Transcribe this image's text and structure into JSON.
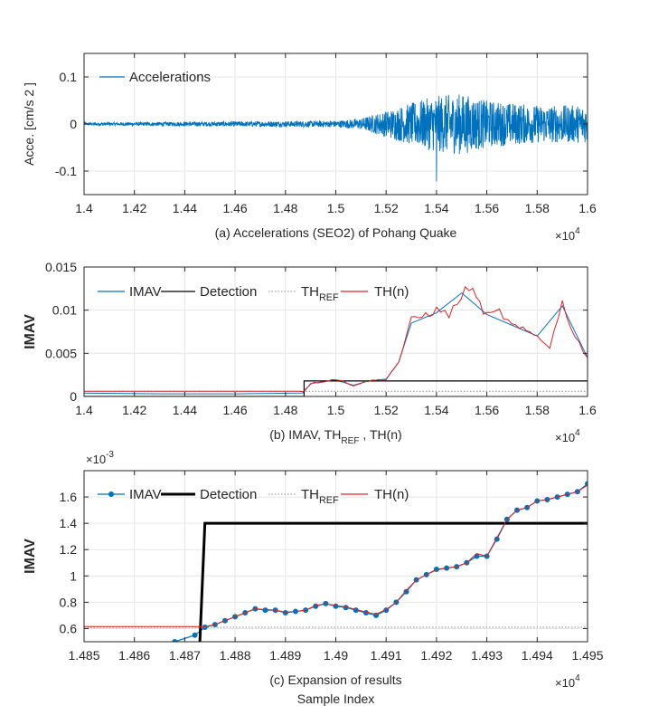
{
  "chart_data": [
    {
      "id": "a",
      "type": "line",
      "xlabel": "(a) Accelerations (SEO2) of  Pohang Quake",
      "ylabel": "Acce. [cm/s 2 ]",
      "x_multiplier_base": "×10",
      "x_multiplier_exp": "4",
      "xlim": [
        1.4,
        1.6
      ],
      "ylim": [
        -0.15,
        0.15
      ],
      "xticks": [
        "1.4",
        "1.42",
        "1.44",
        "1.46",
        "1.48",
        "1.5",
        "1.52",
        "1.54",
        "1.56",
        "1.58",
        "1.6"
      ],
      "yticks": [
        "0.1",
        "0",
        "-0.1"
      ],
      "ytick_values": [
        0.1,
        0,
        -0.1
      ],
      "grid": true,
      "legend_position": "top-left",
      "series": [
        {
          "name": "Accelerations",
          "color": "#0072BD",
          "style": "solid",
          "kind": "seismic",
          "envelope": [
            [
              1.4,
              0.003
            ],
            [
              1.5,
              0.007
            ],
            [
              1.51,
              0.012
            ],
            [
              1.52,
              0.028
            ],
            [
              1.53,
              0.045
            ],
            [
              1.54,
              0.06
            ],
            [
              1.55,
              0.065
            ],
            [
              1.56,
              0.05
            ],
            [
              1.58,
              0.04
            ],
            [
              1.6,
              0.04
            ]
          ],
          "peak": {
            "x": 1.54,
            "y": -0.122
          }
        }
      ]
    },
    {
      "id": "b",
      "type": "line",
      "xlabel_main": "(b) IMAV, TH",
      "xlabel_sub": "REF",
      "xlabel_tail": " , TH(n)",
      "ylabel": "IMAV",
      "x_multiplier_base": "×10",
      "x_multiplier_exp": "4",
      "xlim": [
        1.4,
        1.6
      ],
      "ylim": [
        0,
        0.015
      ],
      "xticks": [
        "1.4",
        "1.42",
        "1.44",
        "1.46",
        "1.48",
        "1.5",
        "1.52",
        "1.54",
        "1.56",
        "1.58",
        "1.6"
      ],
      "yticks": [
        "0.015",
        "0.01",
        "0.005",
        "0"
      ],
      "ytick_values": [
        0.015,
        0.01,
        0.005,
        0
      ],
      "grid": true,
      "legend_position": "top",
      "series": [
        {
          "name": "IMAV",
          "color": "#0072BD",
          "style": "solid",
          "points": [
            [
              1.4,
              0.0004
            ],
            [
              1.43,
              0.0003
            ],
            [
              1.46,
              0.0003
            ],
            [
              1.487,
              0.0004
            ],
            [
              1.49,
              0.0015
            ],
            [
              1.5,
              0.0019
            ],
            [
              1.507,
              0.0013
            ],
            [
              1.513,
              0.0018
            ],
            [
              1.52,
              0.002
            ],
            [
              1.525,
              0.004
            ],
            [
              1.53,
              0.0085
            ],
            [
              1.54,
              0.0097
            ],
            [
              1.55,
              0.012
            ],
            [
              1.56,
              0.0095
            ],
            [
              1.58,
              0.007
            ],
            [
              1.59,
              0.0105
            ],
            [
              1.6,
              0.0045
            ]
          ]
        },
        {
          "name": "Detection",
          "color": "#000000",
          "style": "step",
          "points": [
            [
              1.4,
              0
            ],
            [
              1.4874,
              0
            ],
            [
              1.4874,
              0.0018
            ],
            [
              1.6,
              0.0018
            ]
          ]
        },
        {
          "name_main": "TH",
          "name_sub": "REF",
          "color": "#8c8c8c",
          "style": "dotted",
          "points": [
            [
              1.4,
              0.0006
            ],
            [
              1.6,
              0.0006
            ]
          ]
        },
        {
          "name": "TH(n)",
          "color": "#D62728",
          "style": "solid",
          "points": [
            [
              1.4,
              0.0006
            ],
            [
              1.487,
              0.0006
            ],
            [
              1.49,
              0.0015
            ],
            [
              1.5,
              0.002
            ],
            [
              1.507,
              0.0013
            ],
            [
              1.513,
              0.0018
            ],
            [
              1.52,
              0.002
            ],
            [
              1.525,
              0.004
            ],
            [
              1.53,
              0.0088
            ],
            [
              1.54,
              0.01
            ],
            [
              1.545,
              0.0095
            ],
            [
              1.553,
              0.0128
            ],
            [
              1.56,
              0.0093
            ],
            [
              1.565,
              0.0098
            ],
            [
              1.57,
              0.0082
            ],
            [
              1.58,
              0.007
            ],
            [
              1.585,
              0.0058
            ],
            [
              1.59,
              0.0108
            ],
            [
              1.595,
              0.007
            ],
            [
              1.6,
              0.0045
            ]
          ]
        }
      ]
    },
    {
      "id": "c",
      "type": "line",
      "xlabel": "(c) Expansion of results",
      "xlabel2": "Sample Index",
      "ylabel": "IMAV",
      "x_multiplier_base": "×10",
      "x_multiplier_exp": "4",
      "y_multiplier_base": "×10",
      "y_multiplier_exp": "-3",
      "xlim": [
        1.485,
        1.495
      ],
      "ylim": [
        0.5,
        1.8
      ],
      "xticks": [
        "1.485",
        "1.486",
        "1.487",
        "1.488",
        "1.489",
        "1.49",
        "1.491",
        "1.492",
        "1.493",
        "1.494",
        "1.495"
      ],
      "yticks": [
        "1.6",
        "1.4",
        "1.2",
        "1",
        "0.8",
        "0.6"
      ],
      "ytick_values": [
        1.6,
        1.4,
        1.2,
        1.0,
        0.8,
        0.6
      ],
      "grid": true,
      "legend_position": "top",
      "series": [
        {
          "name": "IMAV",
          "color": "#0072BD",
          "style": "markers",
          "points": [
            [
              1.4868,
              0.5
            ],
            [
              1.4872,
              0.55
            ],
            [
              1.4874,
              0.61
            ],
            [
              1.4876,
              0.63
            ],
            [
              1.4878,
              0.66
            ],
            [
              1.488,
              0.69
            ],
            [
              1.4882,
              0.72
            ],
            [
              1.4884,
              0.75
            ],
            [
              1.4886,
              0.74
            ],
            [
              1.4888,
              0.74
            ],
            [
              1.489,
              0.72
            ],
            [
              1.4892,
              0.73
            ],
            [
              1.4894,
              0.74
            ],
            [
              1.4896,
              0.77
            ],
            [
              1.4898,
              0.79
            ],
            [
              1.49,
              0.77
            ],
            [
              1.4902,
              0.76
            ],
            [
              1.4904,
              0.74
            ],
            [
              1.4906,
              0.72
            ],
            [
              1.4908,
              0.7
            ],
            [
              1.491,
              0.74
            ],
            [
              1.4912,
              0.8
            ],
            [
              1.4914,
              0.88
            ],
            [
              1.4916,
              0.97
            ],
            [
              1.4918,
              1.01
            ],
            [
              1.492,
              1.05
            ],
            [
              1.4922,
              1.06
            ],
            [
              1.4924,
              1.07
            ],
            [
              1.4926,
              1.1
            ],
            [
              1.4928,
              1.15
            ],
            [
              1.493,
              1.15
            ],
            [
              1.4932,
              1.28
            ],
            [
              1.4934,
              1.43
            ],
            [
              1.4936,
              1.5
            ],
            [
              1.4938,
              1.52
            ],
            [
              1.494,
              1.57
            ],
            [
              1.4942,
              1.58
            ],
            [
              1.4944,
              1.6
            ],
            [
              1.4946,
              1.62
            ],
            [
              1.4948,
              1.64
            ],
            [
              1.495,
              1.7
            ]
          ]
        },
        {
          "name": "Detection",
          "color": "#000000",
          "style": "step",
          "points": [
            [
              1.4873,
              0.5
            ],
            [
              1.4874,
              1.4
            ],
            [
              1.495,
              1.4
            ]
          ]
        },
        {
          "name_main": "TH",
          "name_sub": "REF",
          "color": "#8c8c8c",
          "style": "dotted",
          "points": [
            [
              1.485,
              0.61
            ],
            [
              1.495,
              0.61
            ]
          ]
        },
        {
          "name": "TH(n)",
          "color": "#D62728",
          "style": "solid",
          "points": [
            [
              1.485,
              0.615
            ],
            [
              1.4874,
              0.615
            ],
            [
              1.4876,
              0.63
            ],
            [
              1.4878,
              0.66
            ],
            [
              1.488,
              0.69
            ],
            [
              1.4882,
              0.72
            ],
            [
              1.4884,
              0.75
            ],
            [
              1.4886,
              0.745
            ],
            [
              1.4888,
              0.74
            ],
            [
              1.489,
              0.725
            ],
            [
              1.4892,
              0.73
            ],
            [
              1.4894,
              0.74
            ],
            [
              1.4896,
              0.775
            ],
            [
              1.4898,
              0.79
            ],
            [
              1.49,
              0.775
            ],
            [
              1.4902,
              0.765
            ],
            [
              1.4904,
              0.745
            ],
            [
              1.4906,
              0.725
            ],
            [
              1.4908,
              0.71
            ],
            [
              1.491,
              0.745
            ],
            [
              1.4912,
              0.8
            ],
            [
              1.4914,
              0.89
            ],
            [
              1.4916,
              0.97
            ],
            [
              1.4918,
              1.01
            ],
            [
              1.492,
              1.045
            ],
            [
              1.4922,
              1.06
            ],
            [
              1.4924,
              1.07
            ],
            [
              1.4926,
              1.1
            ],
            [
              1.4928,
              1.17
            ],
            [
              1.493,
              1.15
            ],
            [
              1.4932,
              1.29
            ],
            [
              1.4934,
              1.43
            ],
            [
              1.4936,
              1.5
            ],
            [
              1.4938,
              1.52
            ],
            [
              1.494,
              1.57
            ],
            [
              1.4942,
              1.58
            ],
            [
              1.4944,
              1.6
            ],
            [
              1.4946,
              1.62
            ],
            [
              1.4948,
              1.64
            ],
            [
              1.495,
              1.69
            ]
          ]
        }
      ]
    }
  ]
}
